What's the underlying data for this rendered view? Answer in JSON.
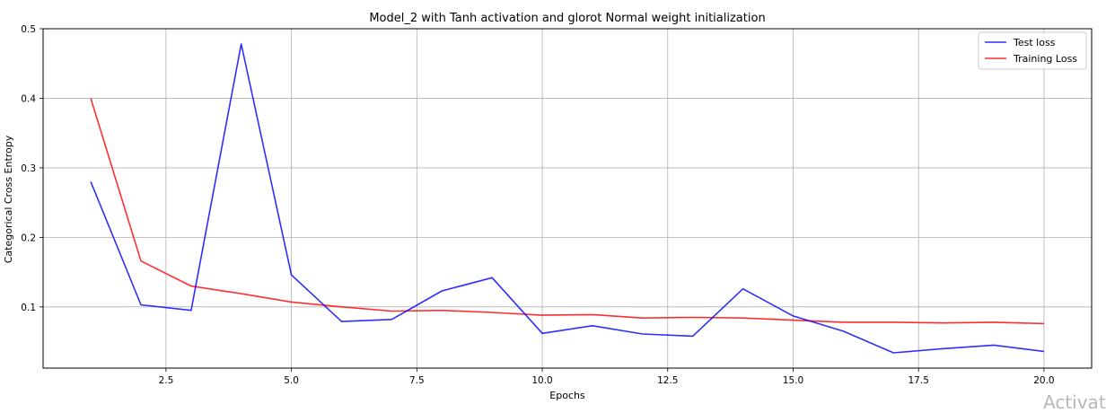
{
  "chart_data": {
    "type": "line",
    "title": "Model_2 with Tanh activation and glorot Normal weight initialization",
    "xlabel": "Epochs",
    "ylabel": "Categorical Cross Entropy",
    "xlim": [
      0.05,
      20.95
    ],
    "ylim": [
      0.012,
      0.5
    ],
    "xticks": [
      2.5,
      5.0,
      7.5,
      10.0,
      12.5,
      15.0,
      17.5,
      20.0
    ],
    "xtick_labels": [
      "2.5",
      "5.0",
      "7.5",
      "10.0",
      "12.5",
      "15.0",
      "17.5",
      "20.0"
    ],
    "yticks": [
      0.1,
      0.2,
      0.3,
      0.4,
      0.5
    ],
    "ytick_labels": [
      "0.1",
      "0.2",
      "0.3",
      "0.4",
      "0.5"
    ],
    "grid": true,
    "legend_position": "top-right",
    "x": [
      1,
      2,
      3,
      4,
      5,
      6,
      7,
      8,
      9,
      10,
      11,
      12,
      13,
      14,
      15,
      16,
      17,
      18,
      19,
      20
    ],
    "series": [
      {
        "name": "Test loss",
        "color": "#0000ff",
        "values": [
          0.28,
          0.103,
          0.095,
          0.478,
          0.146,
          0.079,
          0.082,
          0.123,
          0.142,
          0.062,
          0.073,
          0.061,
          0.058,
          0.126,
          0.087,
          0.065,
          0.034,
          0.04,
          0.045,
          0.036
        ]
      },
      {
        "name": "Training Loss",
        "color": "#ff0000",
        "values": [
          0.4,
          0.166,
          0.13,
          0.119,
          0.107,
          0.1,
          0.094,
          0.095,
          0.092,
          0.088,
          0.089,
          0.084,
          0.085,
          0.084,
          0.081,
          0.078,
          0.078,
          0.077,
          0.078,
          0.076
        ]
      }
    ]
  },
  "overlay": {
    "watermark_text": "Activat"
  }
}
